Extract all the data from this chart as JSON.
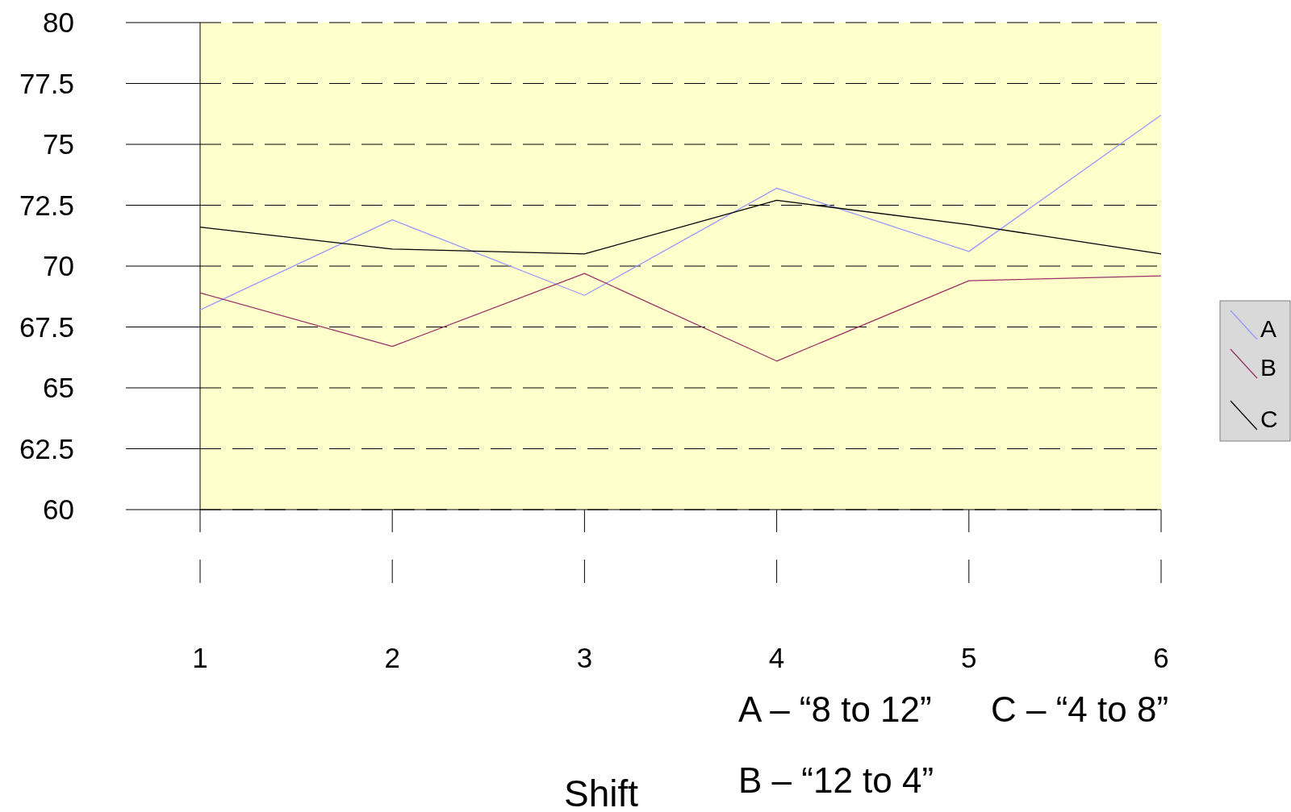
{
  "chart_data": {
    "type": "line",
    "xlabel": "Shift",
    "x": [
      1,
      2,
      3,
      4,
      5,
      6
    ],
    "xlim": [
      1,
      6
    ],
    "xticks": [
      1,
      2,
      3,
      4,
      5,
      6
    ],
    "ylim": [
      60,
      80
    ],
    "yticks": [
      60,
      {
        "value": 62.5,
        "label": "62.5"
      },
      65,
      {
        "value": 67.5,
        "label": "67.5"
      },
      70,
      {
        "value": 72.5,
        "label": "72.5"
      },
      75,
      {
        "value": 77.5,
        "label": "77.5"
      },
      80
    ],
    "grid": "y",
    "legend": "right",
    "marker": "none",
    "line_style": "solid",
    "series": [
      {
        "name": "A",
        "color": "#9999ff",
        "values": [
          68.2,
          71.9,
          68.8,
          73.2,
          70.6,
          76.2
        ]
      },
      {
        "name": "B",
        "color": "#993366",
        "values": [
          68.9,
          66.7,
          69.7,
          66.1,
          69.4,
          69.6
        ]
      },
      {
        "name": "C",
        "color": "#000000",
        "values": [
          71.6,
          70.7,
          70.5,
          72.7,
          71.7,
          70.5
        ]
      }
    ],
    "annotations": [
      "A – “8 to 12”",
      "C – “4 to 8”",
      "B – “12 to 4”"
    ]
  }
}
